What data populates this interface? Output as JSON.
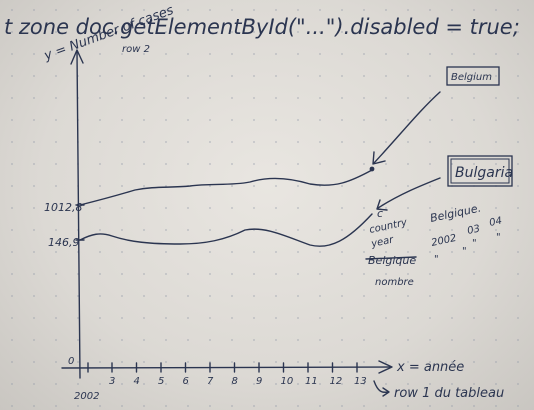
{
  "code_line": "t zone doc.getElementById(\"...\").disabled = true;",
  "y_axis_label": "y = Number of cases",
  "row_label": "row 2",
  "x_axis_label": "x = année",
  "x_ticks": [
    "2002",
    "3",
    "4",
    "5",
    "6",
    "7",
    "8",
    "9",
    "10",
    "11",
    "12",
    "13"
  ],
  "y_ticks": [
    "1012,8",
    "146,9",
    "0"
  ],
  "legend": {
    "belgium": "Belgium",
    "bulgaria": "Bulgaria"
  },
  "notes": {
    "c_label": "c",
    "country": "country",
    "year": "year",
    "belgique_struck": "Belgique",
    "nombre": "nombre",
    "belgique_header": "Belgique.",
    "row_2002": "2002",
    "row_03": "03",
    "row_04": "04",
    "ditto1": "\"",
    "ditto2": "\"",
    "ditto3": "\"",
    "ditto4": "\""
  },
  "footer_note": "row 1 du tableau"
}
